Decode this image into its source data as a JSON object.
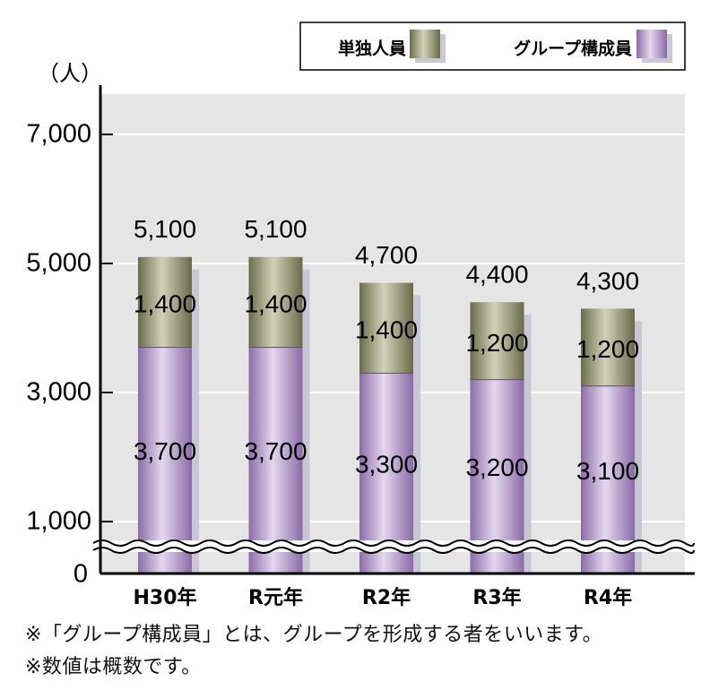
{
  "chart_data": {
    "type": "bar",
    "stacked": true,
    "unit_label": "（人）",
    "categories": [
      "H30年",
      "R元年",
      "R2年",
      "R3年",
      "R4年"
    ],
    "series": [
      {
        "name": "グループ構成員",
        "values": [
          3700,
          3700,
          3300,
          3200,
          3100
        ],
        "color": "#a98fc4"
      },
      {
        "name": "単独人員",
        "values": [
          1400,
          1400,
          1400,
          1200,
          1200
        ],
        "color": "#8a8a66"
      }
    ],
    "totals": [
      5100,
      5100,
      4700,
      4400,
      4300
    ],
    "total_labels": [
      "5,100",
      "5,100",
      "4,700",
      "4,400",
      "4,300"
    ],
    "group_labels": [
      "3,700",
      "3,700",
      "3,300",
      "3,200",
      "3,100"
    ],
    "single_labels": [
      "1,400",
      "1,400",
      "1,400",
      "1,200",
      "1,200"
    ],
    "y_ticks": [
      {
        "value": 1000,
        "label": "1,000"
      },
      {
        "value": 3000,
        "label": "3,000"
      },
      {
        "value": 5000,
        "label": "5,000"
      },
      {
        "value": 7000,
        "label": "7,000"
      }
    ],
    "y_zero_label": "0",
    "ylim": [
      0,
      7600
    ],
    "axis_break": true,
    "grid": true,
    "legend_position": "top-right"
  },
  "notes": [
    "※「グループ構成員」とは、グループを形成する者をいいます。",
    "※数値は概数です。"
  ]
}
